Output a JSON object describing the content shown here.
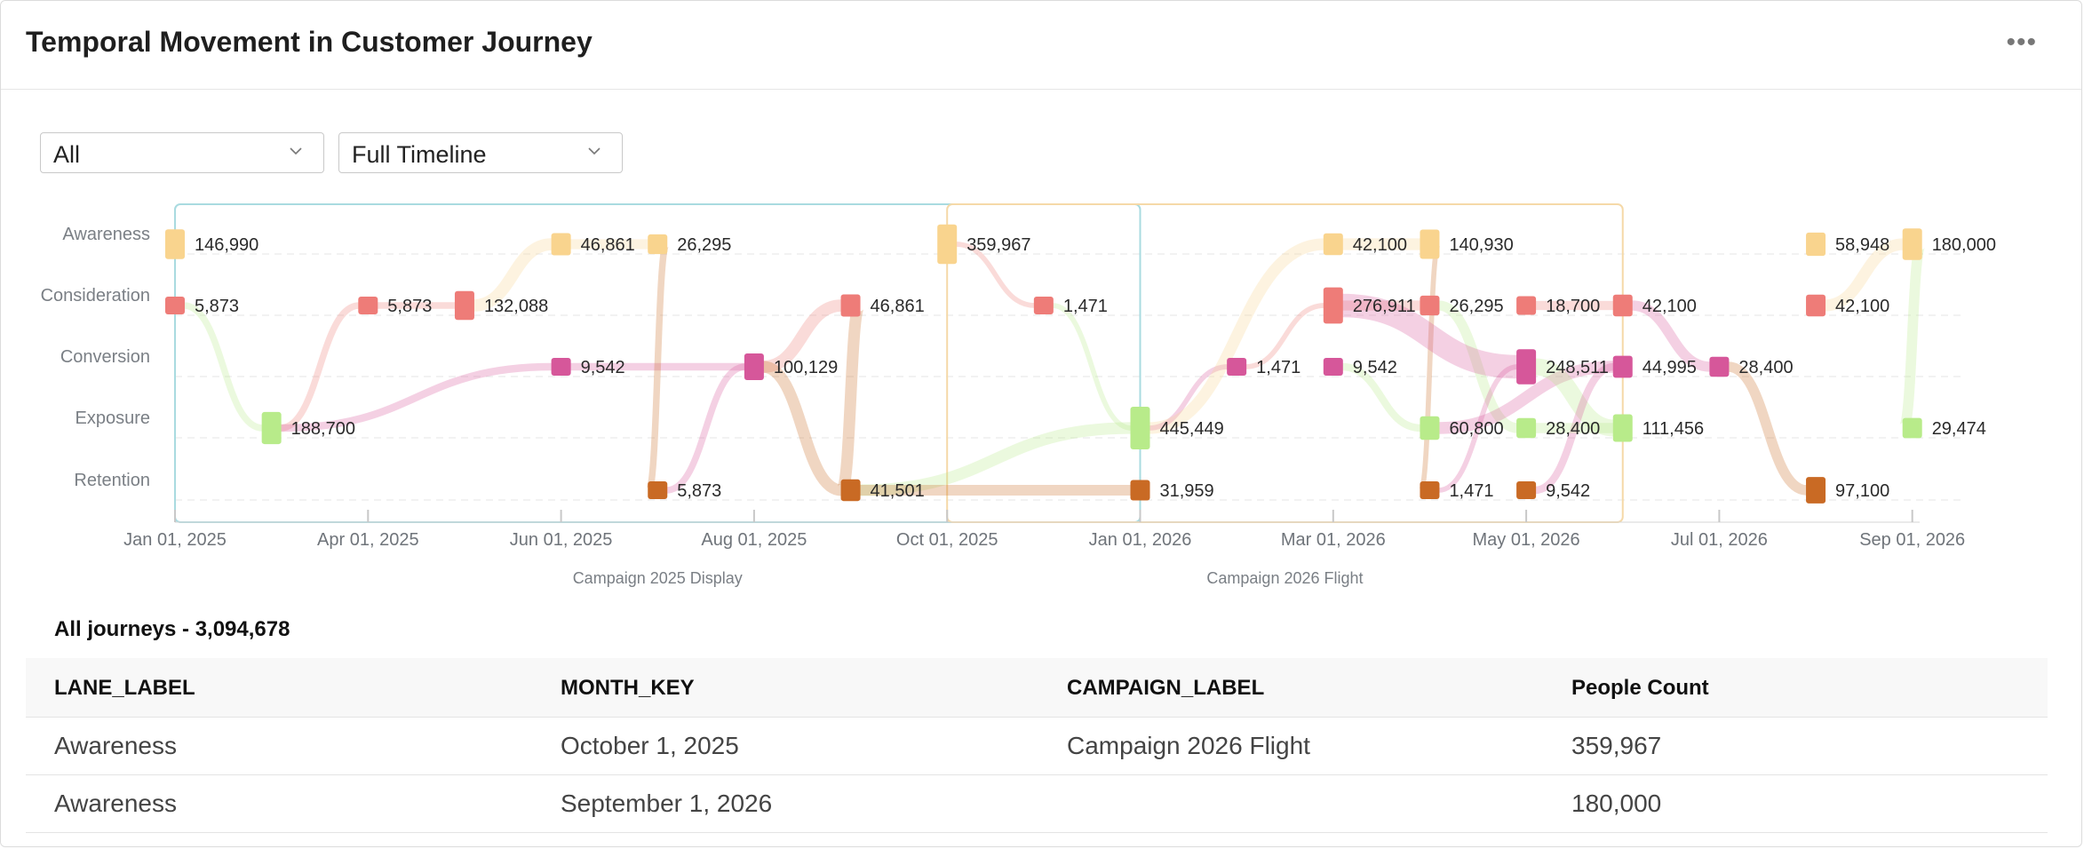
{
  "header": {
    "title": "Temporal Movement in Customer Journey"
  },
  "filters": {
    "segment": "All",
    "timeline": "Full Timeline"
  },
  "chart_data": {
    "type": "sankey",
    "lanes": [
      "Awareness",
      "Consideration",
      "Conversion",
      "Exposure",
      "Retention"
    ],
    "x_ticks": [
      "Jan 01, 2025",
      "Apr 01, 2025",
      "Jun 01, 2025",
      "Aug 01, 2025",
      "Oct 01, 2025",
      "Jan 01, 2026",
      "Mar 01, 2026",
      "May 01, 2026",
      "Jul 01, 2026",
      "Sep 01, 2026"
    ],
    "campaigns": [
      {
        "label": "Campaign 2025 Display",
        "start_tick": 0,
        "end_tick": 5
      },
      {
        "label": "Campaign 2026 Flight",
        "start_tick": 4,
        "end_tick": 7.5
      }
    ],
    "colors": {
      "Awareness": "#f9d48e",
      "Consideration": "#ee7c78",
      "Conversion": "#d6579a",
      "Exposure": "#b8eb8a",
      "Retention": "#c96a24"
    },
    "nodes": [
      {
        "id": "n1",
        "lane": 0,
        "t": 0,
        "value": 146990,
        "label": "146,990"
      },
      {
        "id": "n2",
        "lane": 1,
        "t": 0,
        "value": 5873,
        "label": "5,873"
      },
      {
        "id": "n3",
        "lane": 3,
        "t": 0.5,
        "value": 188700,
        "label": "188,700"
      },
      {
        "id": "n4",
        "lane": 1,
        "t": 1,
        "value": 5873,
        "label": "5,873"
      },
      {
        "id": "n5",
        "lane": 1,
        "t": 1.5,
        "value": 132088,
        "label": "132,088"
      },
      {
        "id": "n6",
        "lane": 0,
        "t": 2,
        "value": 46861,
        "label": "46,861"
      },
      {
        "id": "n7",
        "lane": 2,
        "t": 2,
        "value": 9542,
        "label": "9,542"
      },
      {
        "id": "n8",
        "lane": 0,
        "t": 2.5,
        "value": 26295,
        "label": "26,295"
      },
      {
        "id": "n9",
        "lane": 4,
        "t": 2.5,
        "value": 5873,
        "label": "5,873"
      },
      {
        "id": "n10",
        "lane": 2,
        "t": 3,
        "value": 100129,
        "label": "100,129"
      },
      {
        "id": "n11",
        "lane": 1,
        "t": 3.5,
        "value": 46861,
        "label": "46,861"
      },
      {
        "id": "n12",
        "lane": 4,
        "t": 3.5,
        "value": 41501,
        "label": "41,501"
      },
      {
        "id": "n13",
        "lane": 0,
        "t": 4,
        "value": 359967,
        "label": "359,967"
      },
      {
        "id": "n14",
        "lane": 1,
        "t": 4.5,
        "value": 1471,
        "label": "1,471"
      },
      {
        "id": "n15",
        "lane": 3,
        "t": 5,
        "value": 445449,
        "label": "445,449"
      },
      {
        "id": "n16",
        "lane": 4,
        "t": 5,
        "value": 31959,
        "label": "31,959"
      },
      {
        "id": "n17",
        "lane": 2,
        "t": 5.5,
        "value": 1471,
        "label": "1,471"
      },
      {
        "id": "n18",
        "lane": 0,
        "t": 6,
        "value": 42100,
        "label": "42,100"
      },
      {
        "id": "n19",
        "lane": 1,
        "t": 6,
        "value": 276911,
        "label": "276,911"
      },
      {
        "id": "n20",
        "lane": 2,
        "t": 6,
        "value": 9542,
        "label": "9,542"
      },
      {
        "id": "n21",
        "lane": 0,
        "t": 6.5,
        "value": 140930,
        "label": "140,930"
      },
      {
        "id": "n22",
        "lane": 1,
        "t": 6.5,
        "value": 26295,
        "label": "26,295"
      },
      {
        "id": "n23",
        "lane": 3,
        "t": 6.5,
        "value": 60800,
        "label": "60,800"
      },
      {
        "id": "n24",
        "lane": 4,
        "t": 6.5,
        "value": 1471,
        "label": "1,471"
      },
      {
        "id": "n25",
        "lane": 1,
        "t": 7,
        "value": 18700,
        "label": "18,700"
      },
      {
        "id": "n26",
        "lane": 2,
        "t": 7,
        "value": 248511,
        "label": "248,511"
      },
      {
        "id": "n27",
        "lane": 3,
        "t": 7,
        "value": 28400,
        "label": "28,400"
      },
      {
        "id": "n28",
        "lane": 4,
        "t": 7,
        "value": 9542,
        "label": "9,542"
      },
      {
        "id": "n29",
        "lane": 1,
        "t": 7.5,
        "value": 42100,
        "label": "42,100"
      },
      {
        "id": "n30",
        "lane": 2,
        "t": 7.5,
        "value": 44995,
        "label": "44,995"
      },
      {
        "id": "n31",
        "lane": 3,
        "t": 7.5,
        "value": 111456,
        "label": "111,456"
      },
      {
        "id": "n32",
        "lane": 2,
        "t": 8,
        "value": 28400,
        "label": "28,400"
      },
      {
        "id": "n33",
        "lane": 0,
        "t": 8.5,
        "value": 58948,
        "label": "58,948"
      },
      {
        "id": "n34",
        "lane": 1,
        "t": 8.5,
        "value": 42100,
        "label": "42,100"
      },
      {
        "id": "n35",
        "lane": 4,
        "t": 8.5,
        "value": 97100,
        "label": "97,100"
      },
      {
        "id": "n36",
        "lane": 0,
        "t": 9,
        "value": 180000,
        "label": "180,000"
      },
      {
        "id": "n37",
        "lane": 3,
        "t": 9,
        "value": 29474,
        "label": "29,474"
      }
    ],
    "links": [
      [
        "n2",
        "n3"
      ],
      [
        "n3",
        "n4"
      ],
      [
        "n3",
        "n7"
      ],
      [
        "n4",
        "n5"
      ],
      [
        "n5",
        "n6"
      ],
      [
        "n6",
        "n8"
      ],
      [
        "n7",
        "n10"
      ],
      [
        "n8",
        "n9"
      ],
      [
        "n9",
        "n10"
      ],
      [
        "n10",
        "n11"
      ],
      [
        "n10",
        "n12"
      ],
      [
        "n11",
        "n12"
      ],
      [
        "n12",
        "n15"
      ],
      [
        "n12",
        "n16"
      ],
      [
        "n13",
        "n14"
      ],
      [
        "n14",
        "n15"
      ],
      [
        "n15",
        "n17"
      ],
      [
        "n15",
        "n18"
      ],
      [
        "n17",
        "n19"
      ],
      [
        "n18",
        "n21"
      ],
      [
        "n19",
        "n22"
      ],
      [
        "n20",
        "n23"
      ],
      [
        "n21",
        "n24"
      ],
      [
        "n22",
        "n27"
      ],
      [
        "n19",
        "n26"
      ],
      [
        "n24",
        "n26"
      ],
      [
        "n23",
        "n30"
      ],
      [
        "n26",
        "n31"
      ],
      [
        "n25",
        "n29"
      ],
      [
        "n28",
        "n30"
      ],
      [
        "n27",
        "n31"
      ],
      [
        "n29",
        "n32"
      ],
      [
        "n32",
        "n35"
      ],
      [
        "n34",
        "n36"
      ],
      [
        "n36",
        "n37"
      ]
    ]
  },
  "summary": "All journeys - 3,094,678",
  "table": {
    "columns": [
      "LANE_LABEL",
      "MONTH_KEY",
      "CAMPAIGN_LABEL",
      "People Count"
    ],
    "rows": [
      [
        "Awareness",
        "October 1, 2025",
        "Campaign 2026 Flight",
        "359,967"
      ],
      [
        "Awareness",
        "September 1, 2026",
        "",
        "180,000"
      ]
    ]
  }
}
